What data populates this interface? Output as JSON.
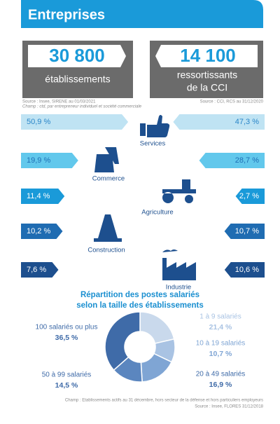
{
  "header": {
    "title": "Entreprises"
  },
  "stats": [
    {
      "value": "30 800",
      "label": "établissements"
    },
    {
      "value": "14 100",
      "label_lines": [
        "ressortissants",
        "de la CCI"
      ]
    }
  ],
  "sources_top": {
    "left": "Source : Insee, SIRENE au 01/03/2021",
    "left_scope": "Champ : ctd, par entrepreneur individuel et société commerciale",
    "right": "Source : CCI, RCS au 31/12/2020"
  },
  "sectors": [
    {
      "name": "Services",
      "color": "#bfe3f3",
      "text_color": "#2a86c8",
      "left": 50.9,
      "left_label": "50,9 %",
      "right": 47.3,
      "right_label": "47,3 %"
    },
    {
      "name": "Commerce",
      "color": "#62c8ec",
      "text_color": "#1f6fb5",
      "left": 19.9,
      "left_label": "19,9 %",
      "right": 28.7,
      "right_label": "28,7 %"
    },
    {
      "name": "Agriculture",
      "color": "#1a9ad9",
      "text_color": "#ffffff",
      "left": 11.4,
      "left_label": "11,4 %",
      "right": 2.7,
      "right_label": "2,7 %"
    },
    {
      "name": "Construction",
      "color": "#1f6cb2",
      "text_color": "#ffffff",
      "left": 10.2,
      "left_label": "10,2 %",
      "right": 10.7,
      "right_label": "10,7 %"
    },
    {
      "name": "Industrie",
      "color": "#1d4f8e",
      "text_color": "#ffffff",
      "left": 7.6,
      "left_label": "7,6 %",
      "right": 10.6,
      "right_label": "10,6 %"
    }
  ],
  "chart_data": {
    "type": "donut",
    "title_lines": [
      "Répartition des postes salariés",
      "selon la taille des établissements"
    ],
    "categories": [
      "1 à 9 salariés",
      "10 à 19 salariés",
      "20 à 49 salariés",
      "50 à 99 salariés",
      "100 salariés ou plus"
    ],
    "values": [
      21.4,
      10.7,
      16.9,
      14.5,
      36.5
    ],
    "value_labels": [
      "21,4 %",
      "10,7 %",
      "16,9 %",
      "14,5 %",
      "36,5 %"
    ],
    "colors": [
      "#c9d9ec",
      "#a9c3e3",
      "#7fa5d4",
      "#5b86bf",
      "#3f6ba8"
    ]
  },
  "footer": {
    "scope": "Champ : Etablissements actifs au 31 décembre, hors secteur de la défense et hors particuliers employeurs",
    "source": "Source : Insee, FLORES 31/12/2018"
  }
}
